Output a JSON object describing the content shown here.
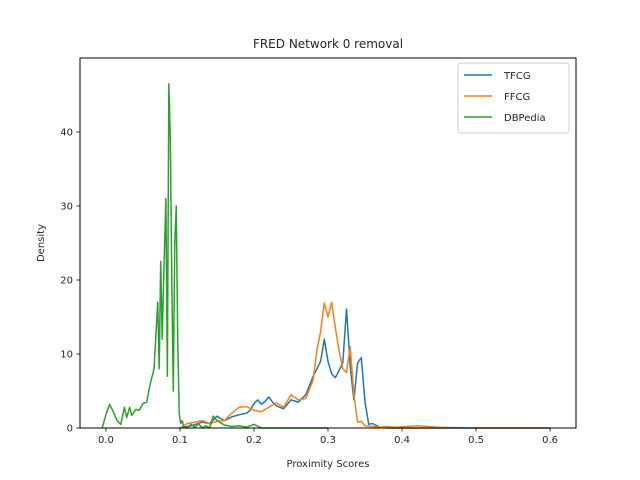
{
  "chart_data": {
    "type": "line",
    "title": "FRED Network 0 removal",
    "xlabel": "Proximity Scores",
    "ylabel": "Density",
    "xlim": [
      -0.035,
      0.635
    ],
    "ylim": [
      0,
      50
    ],
    "xticks": [
      0.0,
      0.1,
      0.2,
      0.3,
      0.4,
      0.5,
      0.6
    ],
    "xtick_labels": [
      "0.0",
      "0.1",
      "0.2",
      "0.3",
      "0.4",
      "0.5",
      "0.6"
    ],
    "yticks": [
      0,
      10,
      20,
      30,
      40
    ],
    "ytick_labels": [
      "0",
      "10",
      "20",
      "30",
      "40"
    ],
    "grid": false,
    "legend_position": "top-right",
    "series": [
      {
        "name": "TFCG",
        "color": "#1f77b4",
        "x": [
          0.1,
          0.115,
          0.13,
          0.14,
          0.15,
          0.16,
          0.17,
          0.18,
          0.19,
          0.195,
          0.2,
          0.205,
          0.21,
          0.215,
          0.22,
          0.225,
          0.23,
          0.24,
          0.25,
          0.26,
          0.27,
          0.28,
          0.29,
          0.295,
          0.3,
          0.305,
          0.31,
          0.315,
          0.32,
          0.325,
          0.33,
          0.335,
          0.34,
          0.345,
          0.35,
          0.355,
          0.36,
          0.37,
          0.38,
          0.4,
          0.5,
          0.6
        ],
        "y": [
          0.0,
          0.3,
          0.8,
          0.6,
          1.6,
          1.0,
          1.5,
          1.8,
          2.0,
          2.4,
          3.3,
          3.8,
          3.2,
          3.6,
          4.2,
          3.5,
          3.0,
          2.6,
          3.8,
          3.5,
          4.5,
          7.0,
          9.0,
          12.0,
          9.0,
          7.3,
          6.8,
          7.8,
          8.8,
          16.1,
          8.3,
          3.8,
          8.8,
          9.5,
          3.5,
          0.5,
          0.6,
          0.1,
          0.0,
          0.0,
          0.0,
          0.0
        ]
      },
      {
        "name": "FFCG",
        "color": "#ff7f0e",
        "x": [
          0.1,
          0.11,
          0.12,
          0.13,
          0.14,
          0.15,
          0.16,
          0.17,
          0.18,
          0.19,
          0.2,
          0.21,
          0.22,
          0.23,
          0.24,
          0.25,
          0.26,
          0.27,
          0.28,
          0.285,
          0.29,
          0.295,
          0.3,
          0.305,
          0.31,
          0.315,
          0.32,
          0.325,
          0.33,
          0.335,
          0.34,
          0.345,
          0.35,
          0.36,
          0.37,
          0.38,
          0.39,
          0.42,
          0.45,
          0.5,
          0.55,
          0.6
        ],
        "y": [
          0.0,
          0.6,
          0.8,
          1.0,
          0.6,
          0.9,
          1.0,
          2.0,
          2.8,
          2.9,
          2.4,
          2.2,
          2.8,
          3.4,
          2.8,
          4.5,
          3.8,
          4.0,
          6.5,
          10.5,
          13.0,
          16.9,
          15.0,
          17.0,
          13.5,
          10.5,
          8.0,
          7.5,
          11.0,
          4.5,
          0.8,
          0.9,
          0.3,
          0.2,
          0.1,
          0.2,
          0.1,
          0.3,
          0.1,
          0.0,
          0.0,
          0.0
        ]
      },
      {
        "name": "DBPedia",
        "color": "#2ca02c",
        "x": [
          -0.005,
          0.0,
          0.005,
          0.01,
          0.015,
          0.02,
          0.025,
          0.028,
          0.032,
          0.035,
          0.04,
          0.045,
          0.05,
          0.055,
          0.06,
          0.065,
          0.07,
          0.072,
          0.074,
          0.076,
          0.078,
          0.081,
          0.083,
          0.085,
          0.087,
          0.089,
          0.091,
          0.093,
          0.095,
          0.097,
          0.099,
          0.101,
          0.103,
          0.105,
          0.108,
          0.11,
          0.115,
          0.12,
          0.125,
          0.13,
          0.135,
          0.14,
          0.145,
          0.15,
          0.16,
          0.17,
          0.18,
          0.19,
          0.2,
          0.21,
          0.25,
          0.3
        ],
        "y": [
          0.0,
          1.8,
          3.2,
          2.2,
          1.0,
          0.5,
          2.8,
          1.4,
          2.8,
          1.7,
          2.5,
          2.4,
          3.3,
          3.5,
          6.0,
          8.0,
          17.0,
          8.0,
          22.5,
          12.0,
          20.0,
          31.0,
          7.0,
          46.5,
          39.0,
          20.0,
          5.0,
          25.0,
          30.0,
          12.0,
          2.0,
          0.6,
          1.0,
          0.3,
          0.0,
          0.0,
          0.5,
          0.1,
          0.6,
          0.0,
          0.3,
          0.0,
          1.6,
          1.0,
          0.4,
          0.2,
          0.3,
          0.1,
          0.5,
          0.0,
          0.0,
          0.0
        ]
      }
    ]
  }
}
